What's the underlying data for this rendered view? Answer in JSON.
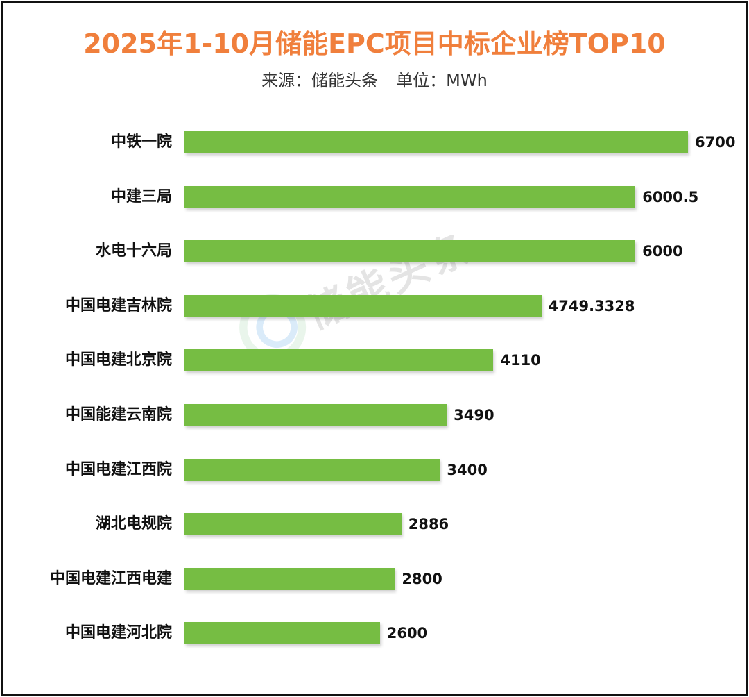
{
  "chart_data": {
    "type": "bar",
    "orientation": "horizontal",
    "title": "2025年1-10月储能EPC项目中标企业榜TOP10",
    "subtitle_source": "来源：储能头条",
    "subtitle_unit": "单位：MWh",
    "categories": [
      "中铁一院",
      "中建三局",
      "水电十六局",
      "中国电建吉林院",
      "中国电建北京院",
      "中国能建云南院",
      "中国电建江西院",
      "湖北电规院",
      "中国电建江西电建",
      "中国电建河北院"
    ],
    "values": [
      6700,
      6000.5,
      6000,
      4749.3328,
      4110,
      3490,
      3400,
      2886,
      2800,
      2600
    ],
    "value_labels": [
      "6700",
      "6000.5",
      "6000",
      "4749.3328",
      "4110",
      "3490",
      "3400",
      "2886",
      "2800",
      "2600"
    ],
    "xlim": [
      0,
      6700
    ],
    "grid": false,
    "legend": "none"
  },
  "watermark_text": "储能头条",
  "colors": {
    "title": "#f07f3c",
    "bar": "#76bd43",
    "watermark_logo_outer": "#9dd3a8",
    "watermark_logo_inner": "#5aa9e6"
  }
}
